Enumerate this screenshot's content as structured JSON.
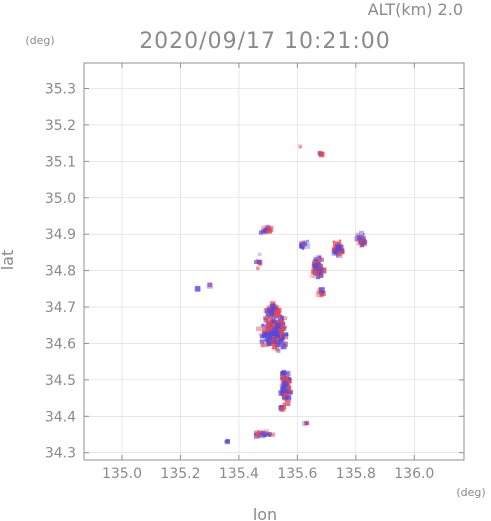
{
  "chart_data": {
    "type": "heatmap",
    "title": "2020/09/17 10:21:00",
    "subtitle": "ALT(km) 2.0",
    "xlabel": "lon",
    "ylabel": "lat",
    "x_unit": "(deg)",
    "y_unit": "(deg)",
    "xlim": [
      134.87,
      136.17
    ],
    "ylim": [
      34.28,
      35.37
    ],
    "x_ticks": [
      "135.0",
      "135.2",
      "135.4",
      "135.6",
      "135.8",
      "136.0"
    ],
    "y_ticks": [
      "34.3",
      "34.4",
      "34.5",
      "34.6",
      "34.7",
      "34.8",
      "34.9",
      "35.0",
      "35.1",
      "35.2",
      "35.3"
    ],
    "grid": true,
    "colormap": {
      "positive": "#e8464e",
      "negative": "#4a4ae8",
      "neutral": "#ffffff"
    },
    "clusters": [
      {
        "lon": 135.52,
        "lat": 34.63,
        "spread_lon": 0.06,
        "spread_lat": 0.06,
        "count": 260
      },
      {
        "lon": 135.56,
        "lat": 34.48,
        "spread_lon": 0.025,
        "spread_lat": 0.06,
        "count": 120
      },
      {
        "lon": 135.52,
        "lat": 34.69,
        "spread_lon": 0.035,
        "spread_lat": 0.02,
        "count": 60
      },
      {
        "lon": 135.67,
        "lat": 34.81,
        "spread_lon": 0.025,
        "spread_lat": 0.04,
        "count": 70
      },
      {
        "lon": 135.74,
        "lat": 34.86,
        "spread_lon": 0.03,
        "spread_lat": 0.03,
        "count": 50
      },
      {
        "lon": 135.82,
        "lat": 34.88,
        "spread_lon": 0.02,
        "spread_lat": 0.03,
        "count": 30
      },
      {
        "lon": 135.49,
        "lat": 34.91,
        "spread_lon": 0.02,
        "spread_lat": 0.02,
        "count": 18
      },
      {
        "lon": 135.68,
        "lat": 34.74,
        "spread_lon": 0.015,
        "spread_lat": 0.02,
        "count": 12
      },
      {
        "lon": 135.55,
        "lat": 34.42,
        "spread_lon": 0.01,
        "spread_lat": 0.01,
        "count": 8
      },
      {
        "lon": 135.48,
        "lat": 34.35,
        "spread_lon": 0.06,
        "spread_lat": 0.008,
        "count": 30
      },
      {
        "lon": 135.36,
        "lat": 34.33,
        "spread_lon": 0.006,
        "spread_lat": 0.004,
        "count": 4
      },
      {
        "lon": 135.63,
        "lat": 34.38,
        "spread_lon": 0.01,
        "spread_lat": 0.004,
        "count": 4
      },
      {
        "lon": 135.68,
        "lat": 35.12,
        "spread_lon": 0.012,
        "spread_lat": 0.006,
        "count": 6
      },
      {
        "lon": 135.61,
        "lat": 35.14,
        "spread_lon": 0.004,
        "spread_lat": 0.003,
        "count": 2
      },
      {
        "lon": 135.3,
        "lat": 34.76,
        "spread_lon": 0.004,
        "spread_lat": 0.004,
        "count": 2
      },
      {
        "lon": 135.26,
        "lat": 34.75,
        "spread_lon": 0.004,
        "spread_lat": 0.002,
        "count": 2
      },
      {
        "lon": 135.47,
        "lat": 34.82,
        "spread_lon": 0.015,
        "spread_lat": 0.03,
        "count": 10
      },
      {
        "lon": 135.62,
        "lat": 34.87,
        "spread_lon": 0.02,
        "spread_lat": 0.02,
        "count": 14
      }
    ]
  }
}
